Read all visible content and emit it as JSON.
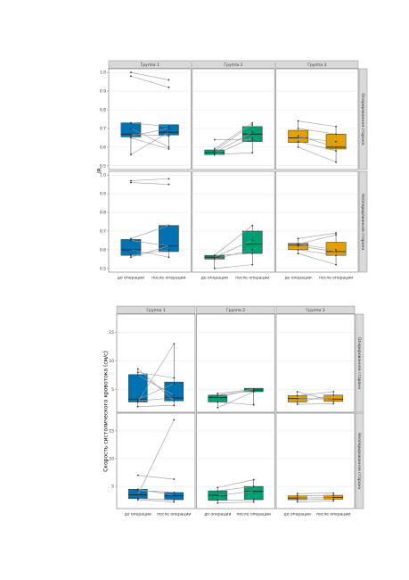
{
  "chart_data": [
    {
      "type": "box",
      "ylabel": "IR",
      "columns": [
        "Группа 1",
        "Группа 2",
        "Группа 3"
      ],
      "rows": [
        "Оперированная сторона",
        "Неоперированная сторона"
      ],
      "categories": [
        "до операции",
        "после операции"
      ],
      "colors": [
        "#0072b2",
        "#009e73",
        "#e69f00"
      ],
      "ylim": [
        0.48,
        1.02
      ],
      "yticks": [
        0.5,
        0.6,
        0.7,
        0.8,
        0.9,
        {
          "value": 1,
          "label": "1.0"
        }
      ],
      "grid": true,
      "panels": [
        {
          "boxes": [
            {
              "low": 0.56,
              "q1": 0.655,
              "median": 0.67,
              "q3": 0.73,
              "high": 0.73
            },
            {
              "low": 0.59,
              "q1": 0.665,
              "median": 0.68,
              "q3": 0.72,
              "high": 0.72
            }
          ],
          "pairs": [
            [
              1.0,
              0.96
            ],
            [
              0.98,
              0.92
            ],
            [
              0.73,
              0.71
            ],
            [
              0.7,
              0.6
            ],
            [
              0.67,
              0.66
            ],
            [
              0.66,
              0.7
            ],
            [
              0.56,
              0.68
            ],
            [
              0.65,
              0.59
            ]
          ]
        },
        {
          "boxes": [
            {
              "low": 0.55,
              "q1": 0.56,
              "median": 0.57,
              "q3": 0.585,
              "high": 0.6
            },
            {
              "low": 0.57,
              "q1": 0.63,
              "median": 0.67,
              "q3": 0.71,
              "high": 0.73
            }
          ],
          "pairs": [
            [
              0.64,
              0.64
            ],
            [
              0.58,
              0.72
            ],
            [
              0.57,
              0.68
            ],
            [
              0.56,
              0.65
            ],
            [
              0.56,
              0.57
            ],
            [
              0.59,
              0.73
            ]
          ]
        },
        {
          "boxes": [
            {
              "low": 0.6,
              "q1": 0.625,
              "median": 0.65,
              "q3": 0.69,
              "high": 0.74
            },
            {
              "low": 0.52,
              "q1": 0.59,
              "median": 0.6,
              "q3": 0.67,
              "high": 0.71
            }
          ],
          "pairs": [
            [
              0.74,
              0.71
            ],
            [
              0.7,
              0.67
            ],
            [
              0.65,
              0.63
            ],
            [
              0.63,
              0.58
            ],
            [
              0.6,
              0.52
            ],
            [
              0.66,
              0.6
            ]
          ]
        },
        {
          "boxes": [
            {
              "low": 0.56,
              "q1": 0.57,
              "median": 0.6,
              "q3": 0.655,
              "high": 0.66
            },
            {
              "low": 0.56,
              "q1": 0.59,
              "median": 0.62,
              "q3": 0.73,
              "high": 0.73
            }
          ],
          "pairs": [
            [
              0.97,
              0.98
            ],
            [
              0.96,
              0.95
            ],
            [
              0.66,
              0.73
            ],
            [
              0.65,
              0.62
            ],
            [
              0.6,
              0.56
            ],
            [
              0.57,
              0.6
            ],
            [
              0.56,
              0.62
            ]
          ]
        },
        {
          "boxes": [
            {
              "low": 0.5,
              "q1": 0.55,
              "median": 0.56,
              "q3": 0.57,
              "high": 0.57
            },
            {
              "low": 0.52,
              "q1": 0.58,
              "median": 0.63,
              "q3": 0.7,
              "high": 0.73
            }
          ],
          "pairs": [
            [
              0.57,
              0.73
            ],
            [
              0.56,
              0.65
            ],
            [
              0.55,
              0.6
            ],
            [
              0.5,
              0.52
            ],
            [
              0.57,
              0.58
            ]
          ]
        },
        {
          "boxes": [
            {
              "low": 0.58,
              "q1": 0.6,
              "median": 0.625,
              "q3": 0.635,
              "high": 0.66
            },
            {
              "low": 0.52,
              "q1": 0.57,
              "median": 0.59,
              "q3": 0.64,
              "high": 0.69
            }
          ],
          "pairs": [
            [
              0.66,
              0.69
            ],
            [
              0.63,
              0.68
            ],
            [
              0.62,
              0.59
            ],
            [
              0.6,
              0.57
            ],
            [
              0.58,
              0.52
            ],
            [
              0.63,
              0.6
            ]
          ]
        }
      ]
    },
    {
      "type": "box",
      "ylabel": "Скорость систолического кровотока (см/с)",
      "columns": [
        "Группа 1",
        "Группа 2",
        "Группа 3"
      ],
      "rows": [
        "Оперированная сторона",
        "Неоперированная сторона"
      ],
      "categories": [
        "до операции",
        "после операции"
      ],
      "colors": [
        "#0072b2",
        "#009e73",
        "#e69f00"
      ],
      "ylim": [
        1,
        18.2
      ],
      "yticks": [
        5,
        10,
        15
      ],
      "grid": true,
      "panels": [
        {
          "boxes": [
            {
              "low": 1.8,
              "q1": 2.8,
              "median": 3.3,
              "q3": 7.6,
              "high": 8.6
            },
            {
              "low": 2,
              "q1": 3,
              "median": 3.5,
              "q3": 6.3,
              "high": 13
            }
          ],
          "pairs": [
            [
              8.6,
              3
            ],
            [
              8,
              7
            ],
            [
              7.5,
              4
            ],
            [
              3.3,
              6
            ],
            [
              2.8,
              13
            ],
            [
              2,
              2.2
            ],
            [
              3,
              3.5
            ]
          ]
        },
        {
          "boxes": [
            {
              "low": 1.8,
              "q1": 2.8,
              "median": 3.6,
              "q3": 4,
              "high": 4.3
            },
            {
              "low": 2.3,
              "q1": 4.6,
              "median": 4.9,
              "q3": 5.2,
              "high": 5.2
            }
          ],
          "pairs": [
            [
              4.3,
              5
            ],
            [
              4,
              4.8
            ],
            [
              3.6,
              5.1
            ],
            [
              2.8,
              2.3
            ],
            [
              1.8,
              4.6
            ]
          ]
        },
        {
          "boxes": [
            {
              "low": 2.4,
              "q1": 2.8,
              "median": 3.4,
              "q3": 3.9,
              "high": 4.6
            },
            {
              "low": 2.5,
              "q1": 2.9,
              "median": 3.3,
              "q3": 4,
              "high": 4.6
            }
          ],
          "pairs": [
            [
              4.6,
              2.9
            ],
            [
              3.9,
              4.6
            ],
            [
              3.4,
              3.3
            ],
            [
              2.8,
              4
            ],
            [
              2.4,
              2.5
            ]
          ]
        },
        {
          "boxes": [
            {
              "low": 2.6,
              "q1": 2.8,
              "median": 3.5,
              "q3": 4.5,
              "high": 4.5
            },
            {
              "low": 2.2,
              "q1": 2.6,
              "median": 3.3,
              "q3": 3.9,
              "high": 4
            }
          ],
          "pairs": [
            [
              7,
              6.3
            ],
            [
              3.5,
              17
            ],
            [
              4.5,
              3.4
            ],
            [
              2.8,
              2.6
            ],
            [
              2.6,
              2.2
            ],
            [
              4.3,
              3.9
            ]
          ]
        },
        {
          "boxes": [
            {
              "low": 2,
              "q1": 2.5,
              "median": 3.4,
              "q3": 4.2,
              "high": 4.8
            },
            {
              "low": 2.2,
              "q1": 2.6,
              "median": 4.1,
              "q3": 5,
              "high": 6.2
            }
          ],
          "pairs": [
            [
              4.8,
              6.2
            ],
            [
              4.2,
              5
            ],
            [
              3.4,
              4.1
            ],
            [
              2.5,
              2.6
            ],
            [
              2,
              2.2
            ]
          ]
        },
        {
          "boxes": [
            {
              "low": 2.2,
              "q1": 2.6,
              "median": 2.9,
              "q3": 3.3,
              "high": 3.7
            },
            {
              "low": 2.4,
              "q1": 2.7,
              "median": 3,
              "q3": 3.4,
              "high": 3.8
            }
          ],
          "pairs": [
            [
              3.7,
              3.8
            ],
            [
              3.3,
              3.4
            ],
            [
              2.9,
              3
            ],
            [
              2.6,
              2.7
            ],
            [
              2.2,
              2.4
            ]
          ]
        }
      ]
    }
  ]
}
